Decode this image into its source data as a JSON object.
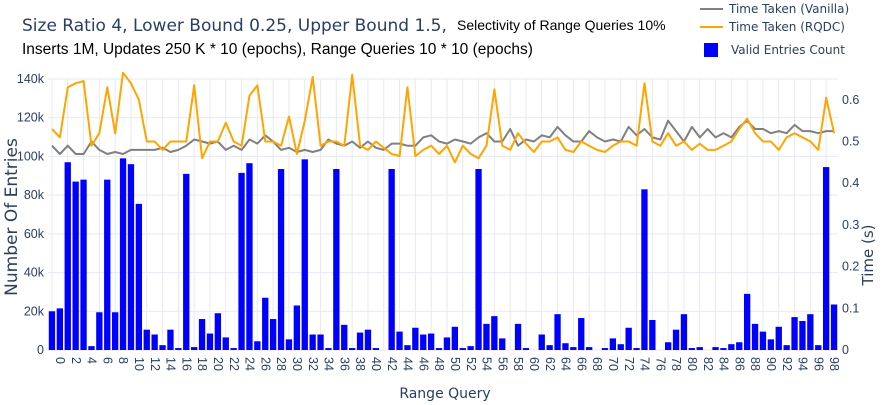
{
  "title": {
    "part1": "Size Ratio 4, Lower Bound 0.25, Upper Bound 1.5,",
    "part2": "Selectivity of Range Queries 10%",
    "line2": "Inserts 1M, Updates 250 K * 10 (epochs), Range Queries 10 * 10 (epochs)"
  },
  "legend": [
    {
      "label": "Time Taken (Vanilla)",
      "color": "#808080",
      "kind": "line"
    },
    {
      "label": "Time Taken (RQDC)",
      "color": "#ffa500",
      "kind": "line"
    },
    {
      "label": "Valid Entries Count",
      "color": "#0000ff",
      "kind": "bar"
    }
  ],
  "chart_data": {
    "type": "bar",
    "title": "Size Ratio 4, Lower Bound 0.25, Upper Bound 1.5, Selectivity of Range Queries 10% — Inserts 1M, Updates 250 K * 10 (epochs), Range Queries 10 * 10 (epochs)",
    "xlabel": "Range Query",
    "ylabel": "Number Of Entries",
    "y2label": "Time (s)",
    "ylim": [
      0,
      140000
    ],
    "y2lim": [
      0,
      0.65
    ],
    "y_ticks": [
      0,
      20000,
      40000,
      60000,
      80000,
      100000,
      120000,
      140000
    ],
    "y_tick_labels": [
      "0",
      "20k",
      "40k",
      "60k",
      "80k",
      "100k",
      "120k",
      "140k"
    ],
    "y2_ticks": [
      0,
      0.1,
      0.2,
      0.3,
      0.4,
      0.5,
      0.6
    ],
    "y2_tick_labels": [
      "0",
      "0.1",
      "0.2",
      "0.3",
      "0.4",
      "0.5",
      "0.6"
    ],
    "x": [
      0,
      1,
      2,
      3,
      4,
      5,
      6,
      7,
      8,
      9,
      10,
      11,
      12,
      13,
      14,
      15,
      16,
      17,
      18,
      19,
      20,
      21,
      22,
      23,
      24,
      25,
      26,
      27,
      28,
      29,
      30,
      31,
      32,
      33,
      34,
      35,
      36,
      37,
      38,
      39,
      40,
      41,
      42,
      43,
      44,
      45,
      46,
      47,
      48,
      49,
      50,
      51,
      52,
      53,
      54,
      55,
      56,
      57,
      58,
      59,
      60,
      61,
      62,
      63,
      64,
      65,
      66,
      67,
      68,
      69,
      70,
      71,
      72,
      73,
      74,
      75,
      76,
      77,
      78,
      79,
      80,
      81,
      82,
      83,
      84,
      85,
      86,
      87,
      88,
      89,
      90,
      91,
      92,
      93,
      94,
      95,
      96,
      97,
      98,
      99
    ],
    "grid": true,
    "legend_position": "top-right",
    "series": [
      {
        "name": "Valid Entries Count",
        "type": "bar",
        "axis": "left",
        "color": "#0000ff",
        "values": [
          20000,
          21500,
          97000,
          87000,
          88000,
          2000,
          19500,
          88000,
          19500,
          99000,
          96000,
          75500,
          10500,
          8000,
          2500,
          10500,
          1000,
          91000,
          1500,
          16000,
          8500,
          19000,
          6500,
          1000,
          91500,
          96500,
          4500,
          27000,
          16000,
          93500,
          5500,
          23000,
          98500,
          8000,
          8000,
          1000,
          93500,
          13000,
          1000,
          9000,
          10500,
          1000,
          0,
          93500,
          9500,
          2500,
          11500,
          8000,
          8500,
          1000,
          6500,
          12000,
          1000,
          2000,
          93500,
          13500,
          17500,
          6000,
          0,
          13500,
          1000,
          0,
          8000,
          2500,
          18500,
          3500,
          1500,
          16500,
          1500,
          0,
          1000,
          6000,
          3000,
          11500,
          1000,
          83000,
          15500,
          0,
          4000,
          10500,
          18500,
          1000,
          1500,
          0,
          1500,
          1000,
          3000,
          4000,
          29000,
          13500,
          9500,
          5500,
          12000,
          2500,
          17000,
          15000,
          18500,
          2500,
          94500,
          23500
        ]
      },
      {
        "name": "Time Taken (Vanilla)",
        "type": "line",
        "axis": "right",
        "color": "#808080",
        "values": [
          0.49,
          0.47,
          0.49,
          0.47,
          0.47,
          0.5,
          0.48,
          0.47,
          0.475,
          0.47,
          0.48,
          0.48,
          0.48,
          0.48,
          0.485,
          0.475,
          0.48,
          0.49,
          0.505,
          0.5,
          0.495,
          0.5,
          0.48,
          0.49,
          0.48,
          0.505,
          0.495,
          0.515,
          0.5,
          0.48,
          0.485,
          0.475,
          0.48,
          0.475,
          0.48,
          0.505,
          0.495,
          0.49,
          0.5,
          0.485,
          0.5,
          0.485,
          0.48,
          0.495,
          0.495,
          0.49,
          0.49,
          0.51,
          0.515,
          0.5,
          0.495,
          0.505,
          0.5,
          0.495,
          0.51,
          0.52,
          0.5,
          0.5,
          0.53,
          0.49,
          0.505,
          0.5,
          0.515,
          0.51,
          0.535,
          0.515,
          0.5,
          0.5,
          0.525,
          0.51,
          0.5,
          0.505,
          0.5,
          0.535,
          0.515,
          0.53,
          0.51,
          0.505,
          0.55,
          0.525,
          0.5,
          0.535,
          0.51,
          0.53,
          0.51,
          0.52,
          0.51,
          0.535,
          0.55,
          0.53,
          0.53,
          0.52,
          0.525,
          0.52,
          0.54,
          0.525,
          0.525,
          0.52,
          0.525,
          0.525
        ]
      },
      {
        "name": "Time Taken (RQDC)",
        "type": "line",
        "axis": "right",
        "color": "#ffa500",
        "values": [
          0.53,
          0.51,
          0.63,
          0.64,
          0.645,
          0.49,
          0.52,
          0.63,
          0.52,
          0.665,
          0.64,
          0.6,
          0.5,
          0.5,
          0.48,
          0.5,
          0.5,
          0.5,
          0.635,
          0.46,
          0.5,
          0.5,
          0.545,
          0.5,
          0.49,
          0.61,
          0.635,
          0.5,
          0.5,
          0.49,
          0.56,
          0.47,
          0.55,
          0.655,
          0.49,
          0.5,
          0.5,
          0.49,
          0.66,
          0.49,
          0.48,
          0.5,
          0.485,
          0.47,
          0.465,
          0.63,
          0.465,
          0.48,
          0.49,
          0.47,
          0.49,
          0.45,
          0.49,
          0.47,
          0.46,
          0.49,
          0.625,
          0.49,
          0.48,
          0.52,
          0.495,
          0.475,
          0.5,
          0.5,
          0.51,
          0.48,
          0.475,
          0.5,
          0.49,
          0.48,
          0.475,
          0.49,
          0.5,
          0.5,
          0.49,
          0.64,
          0.5,
          0.49,
          0.52,
          0.49,
          0.5,
          0.48,
          0.495,
          0.48,
          0.48,
          0.49,
          0.5,
          0.53,
          0.555,
          0.52,
          0.5,
          0.5,
          0.48,
          0.51,
          0.52,
          0.51,
          0.5,
          0.48,
          0.605,
          0.52
        ]
      }
    ]
  }
}
